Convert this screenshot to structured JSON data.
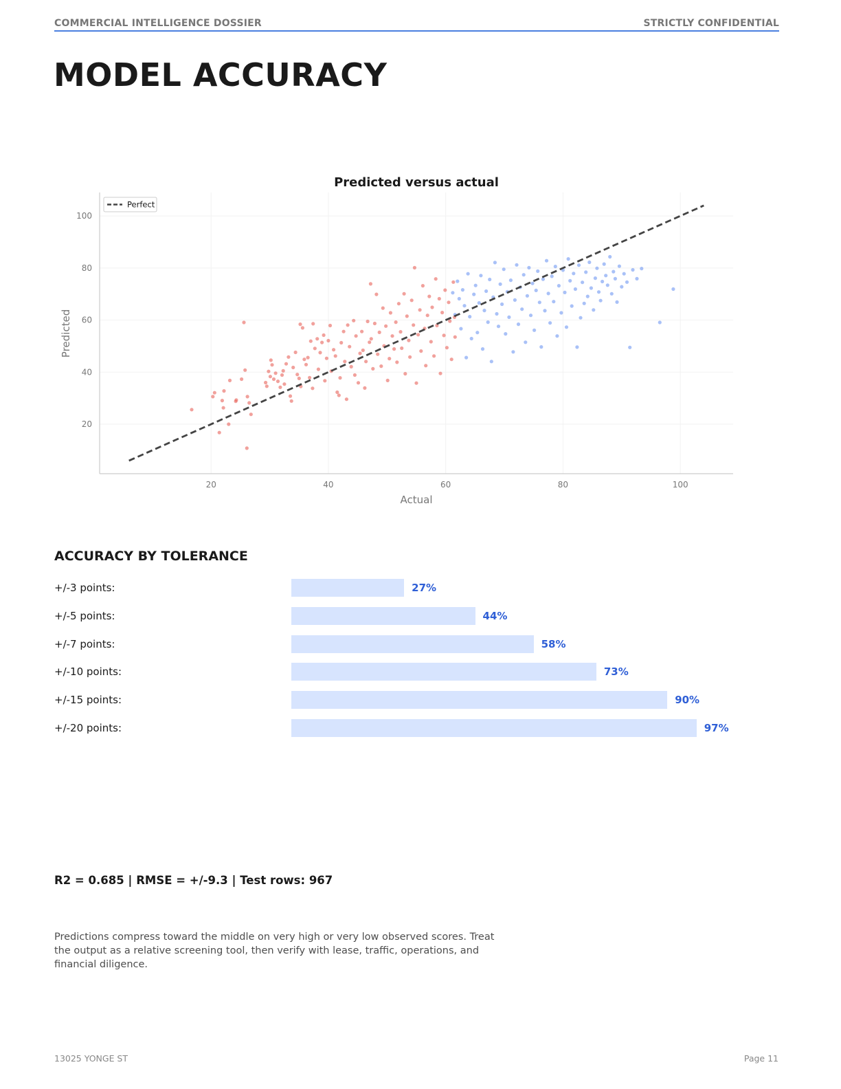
{
  "header": {
    "left": "COMMERCIAL INTELLIGENCE DOSSIER",
    "right": "STRICTLY CONFIDENTIAL",
    "accent_color": "#4a7fe0"
  },
  "page_title": "MODEL ACCURACY",
  "chart_data": {
    "type": "scatter",
    "title": "Predicted versus actual",
    "xlabel": "Actual",
    "ylabel": "Predicted",
    "xlim": [
      1,
      109
    ],
    "ylim": [
      1,
      109
    ],
    "xticks": [
      20,
      40,
      60,
      80,
      100
    ],
    "yticks": [
      20,
      40,
      60,
      80,
      100
    ],
    "grid": true,
    "legend": {
      "placement": "top-left",
      "entries": [
        "Perfect"
      ]
    },
    "reference_line": {
      "name": "Perfect",
      "x": [
        6,
        104
      ],
      "y": [
        6,
        104
      ],
      "style": "dashed",
      "color": "#444444"
    },
    "series": [
      {
        "color": "#e8625a",
        "points": [
          [
            16.7,
            25.6
          ],
          [
            20.3,
            30.6
          ],
          [
            20.6,
            32.1
          ],
          [
            21.4,
            16.8
          ],
          [
            21.9,
            29.1
          ],
          [
            22.1,
            26.3
          ],
          [
            22.2,
            32.8
          ],
          [
            23,
            20
          ],
          [
            23.2,
            36.8
          ],
          [
            24.2,
            28.8
          ],
          [
            24.3,
            29.3
          ],
          [
            25.2,
            37.3
          ],
          [
            25.6,
            59.1
          ],
          [
            25.8,
            40.8
          ],
          [
            26.1,
            10.8
          ],
          [
            26.2,
            30.6
          ],
          [
            26.5,
            28.2
          ],
          [
            26.8,
            23.8
          ],
          [
            29.3,
            36
          ],
          [
            29.5,
            34.6
          ],
          [
            29.8,
            40.3
          ],
          [
            30.1,
            38.3
          ],
          [
            30.2,
            44.6
          ],
          [
            30.4,
            42.8
          ],
          [
            30.7,
            37.3
          ],
          [
            31,
            39.6
          ],
          [
            31.4,
            36.5
          ],
          [
            31.8,
            34.2
          ],
          [
            32.1,
            38.9
          ],
          [
            32.3,
            40.5
          ],
          [
            32.5,
            35.4
          ],
          [
            32.8,
            43.2
          ],
          [
            33.2,
            45.8
          ],
          [
            33.5,
            30.8
          ],
          [
            33.7,
            28.9
          ],
          [
            34,
            41.8
          ],
          [
            34.4,
            47.6
          ],
          [
            34.7,
            39.1
          ],
          [
            35,
            37.6
          ],
          [
            35.2,
            58.4
          ],
          [
            35.3,
            34.5
          ],
          [
            35.6,
            57
          ],
          [
            35.9,
            44.9
          ],
          [
            36.2,
            42.9
          ],
          [
            36.5,
            45.6
          ],
          [
            36.8,
            37.9
          ],
          [
            37,
            51.9
          ],
          [
            37.3,
            33.8
          ],
          [
            37.4,
            58.6
          ],
          [
            37.7,
            49.1
          ],
          [
            38.1,
            52.8
          ],
          [
            38.3,
            41.1
          ],
          [
            38.6,
            47.5
          ],
          [
            38.9,
            51.4
          ],
          [
            39.2,
            54.2
          ],
          [
            39.4,
            36.7
          ],
          [
            39.7,
            45.3
          ],
          [
            40,
            52.1
          ],
          [
            40.3,
            57.9
          ],
          [
            40.5,
            40.4
          ],
          [
            40.9,
            48.6
          ],
          [
            41.2,
            46.2
          ],
          [
            41.5,
            32.3
          ],
          [
            41.8,
            31.1
          ],
          [
            42,
            37.8
          ],
          [
            42.2,
            51.3
          ],
          [
            42.6,
            55.6
          ],
          [
            42.8,
            44.1
          ],
          [
            43.1,
            29.6
          ],
          [
            43.3,
            58.1
          ],
          [
            43.6,
            49.8
          ],
          [
            43.9,
            42.1
          ],
          [
            44.3,
            59.8
          ],
          [
            44.5,
            38.9
          ],
          [
            44.7,
            53.9
          ],
          [
            45.1,
            35.9
          ],
          [
            45.4,
            47.2
          ],
          [
            45.7,
            55.6
          ],
          [
            45.9,
            48.4
          ],
          [
            46.2,
            33.9
          ],
          [
            46.4,
            44.1
          ],
          [
            46.7,
            59.5
          ],
          [
            47,
            51.5
          ],
          [
            47.2,
            73.9
          ],
          [
            47.3,
            52.8
          ],
          [
            47.6,
            41.3
          ],
          [
            47.9,
            58.7
          ],
          [
            48.2,
            69.9
          ],
          [
            48.4,
            46.9
          ],
          [
            48.7,
            55.3
          ],
          [
            49,
            42.3
          ],
          [
            49.3,
            64.6
          ],
          [
            49.5,
            50.1
          ],
          [
            49.8,
            57.7
          ],
          [
            50.1,
            36.8
          ],
          [
            50.4,
            45.2
          ],
          [
            50.6,
            62.8
          ],
          [
            50.9,
            53.9
          ],
          [
            51.2,
            48.9
          ],
          [
            51.5,
            59.2
          ],
          [
            51.7,
            43.8
          ],
          [
            52,
            66.3
          ],
          [
            52.3,
            55.5
          ],
          [
            52.5,
            49.2
          ],
          [
            52.9,
            70.1
          ],
          [
            53.1,
            39.4
          ],
          [
            53.4,
            61.5
          ],
          [
            53.7,
            52.2
          ],
          [
            53.9,
            45.8
          ],
          [
            54.2,
            67.6
          ],
          [
            54.5,
            58.1
          ],
          [
            54.7,
            80.1
          ],
          [
            55,
            35.8
          ],
          [
            55.3,
            54.4
          ],
          [
            55.6,
            63.9
          ],
          [
            55.8,
            48.1
          ],
          [
            56.1,
            73.2
          ],
          [
            56.4,
            56.8
          ],
          [
            56.6,
            42.5
          ],
          [
            56.9,
            61.8
          ],
          [
            57.2,
            69.1
          ],
          [
            57.5,
            51.7
          ],
          [
            57.7,
            64.9
          ],
          [
            58,
            46.2
          ],
          [
            58.3,
            75.8
          ],
          [
            58.5,
            57.9
          ],
          [
            58.9,
            68.2
          ],
          [
            59.1,
            39.5
          ],
          [
            59.4,
            62.9
          ],
          [
            59.7,
            54.1
          ],
          [
            59.9,
            71.5
          ],
          [
            60.2,
            49.4
          ],
          [
            60.5,
            66.8
          ],
          [
            60.7,
            59.6
          ],
          [
            61,
            44.9
          ],
          [
            61.3,
            74.6
          ],
          [
            61.5,
            61.1
          ],
          [
            61.6,
            53.5
          ]
        ]
      },
      {
        "color": "#6f97f2",
        "points": [
          [
            61.2,
            70.5
          ],
          [
            61.6,
            62.1
          ],
          [
            62,
            74.9
          ],
          [
            62.3,
            68.2
          ],
          [
            62.6,
            56.7
          ],
          [
            62.9,
            71.6
          ],
          [
            63.2,
            65.5
          ],
          [
            63.5,
            45.6
          ],
          [
            63.8,
            77.8
          ],
          [
            64.1,
            61.3
          ],
          [
            64.4,
            52.9
          ],
          [
            64.8,
            69.9
          ],
          [
            65.1,
            73.3
          ],
          [
            65.4,
            55.2
          ],
          [
            65.7,
            66.6
          ],
          [
            66,
            77.1
          ],
          [
            66.3,
            48.9
          ],
          [
            66.6,
            63.7
          ],
          [
            66.9,
            71.1
          ],
          [
            67.2,
            59.2
          ],
          [
            67.5,
            75.6
          ],
          [
            67.8,
            44.1
          ],
          [
            68.1,
            68.8
          ],
          [
            68.4,
            82.1
          ],
          [
            68.7,
            62.4
          ],
          [
            69,
            57.6
          ],
          [
            69.3,
            73.8
          ],
          [
            69.6,
            66.1
          ],
          [
            69.9,
            79.5
          ],
          [
            70.2,
            54.7
          ],
          [
            70.5,
            70.9
          ],
          [
            70.8,
            61.1
          ],
          [
            71.1,
            75.3
          ],
          [
            71.5,
            47.8
          ],
          [
            71.8,
            67.7
          ],
          [
            72.1,
            81.2
          ],
          [
            72.4,
            58.4
          ],
          [
            72.7,
            72.6
          ],
          [
            73,
            64.2
          ],
          [
            73.3,
            77.4
          ],
          [
            73.6,
            51.5
          ],
          [
            73.9,
            69.3
          ],
          [
            74.2,
            80.1
          ],
          [
            74.5,
            61.8
          ],
          [
            74.8,
            74.1
          ],
          [
            75.1,
            56.1
          ],
          [
            75.4,
            71.4
          ],
          [
            75.7,
            78.8
          ],
          [
            76,
            66.8
          ],
          [
            76.3,
            49.7
          ],
          [
            76.6,
            75.7
          ],
          [
            76.9,
            63.6
          ],
          [
            77.2,
            82.8
          ],
          [
            77.5,
            70.2
          ],
          [
            77.8,
            58.9
          ],
          [
            78.1,
            76.8
          ],
          [
            78.4,
            67.1
          ],
          [
            78.7,
            80.6
          ],
          [
            79,
            53.9
          ],
          [
            79.3,
            73.2
          ],
          [
            79.7,
            62.8
          ],
          [
            80,
            79.2
          ],
          [
            80.3,
            70.6
          ],
          [
            80.6,
            57.3
          ],
          [
            80.9,
            83.5
          ],
          [
            81.2,
            75.1
          ],
          [
            81.5,
            65.4
          ],
          [
            81.8,
            77.9
          ],
          [
            82.1,
            71.9
          ],
          [
            82.4,
            49.6
          ],
          [
            82.7,
            81.1
          ],
          [
            83,
            60.9
          ],
          [
            83.3,
            74.5
          ],
          [
            83.6,
            66.4
          ],
          [
            83.9,
            78.4
          ],
          [
            84.2,
            69.1
          ],
          [
            84.5,
            82.2
          ],
          [
            84.8,
            72.3
          ],
          [
            85.2,
            63.9
          ],
          [
            85.5,
            76.1
          ],
          [
            85.8,
            79.9
          ],
          [
            86.1,
            70.8
          ],
          [
            86.4,
            67.5
          ],
          [
            86.7,
            74.8
          ],
          [
            87,
            81.5
          ],
          [
            87.3,
            77.1
          ],
          [
            87.6,
            73.4
          ],
          [
            88,
            84.3
          ],
          [
            88.3,
            70.1
          ],
          [
            88.6,
            78.6
          ],
          [
            88.9,
            75.9
          ],
          [
            89.2,
            66.9
          ],
          [
            89.6,
            80.7
          ],
          [
            90,
            72.8
          ],
          [
            90.4,
            77.8
          ],
          [
            90.9,
            74.6
          ],
          [
            91.4,
            49.5
          ],
          [
            91.9,
            79.3
          ],
          [
            92.6,
            75.9
          ],
          [
            93.4,
            79.8
          ],
          [
            96.5,
            59.1
          ],
          [
            98.8,
            71.9
          ]
        ]
      }
    ]
  },
  "tolerance": {
    "title": "ACCURACY BY TOLERANCE",
    "bar_color": "#d7e4fe",
    "value_color": "#2f5fd6",
    "rows": [
      {
        "label": "+/-3 points:",
        "percent": 27,
        "value": "27%"
      },
      {
        "label": "+/-5 points:",
        "percent": 44,
        "value": "44%"
      },
      {
        "label": "+/-7 points:",
        "percent": 58,
        "value": "58%"
      },
      {
        "label": "+/-10 points:",
        "percent": 73,
        "value": "73%"
      },
      {
        "label": "+/-15 points:",
        "percent": 90,
        "value": "90%"
      },
      {
        "label": "+/-20 points:",
        "percent": 97,
        "value": "97%"
      }
    ]
  },
  "stats": "R2 = 0.685 | RMSE = +/-9.3 | Test rows: 967",
  "note": "Predictions compress toward the middle on very high or very low observed scores. Treat the output as a relative screening tool, then verify with lease, traffic, operations, and financial diligence.",
  "footer": {
    "left": "13025 YONGE ST",
    "right": "Page 11"
  }
}
